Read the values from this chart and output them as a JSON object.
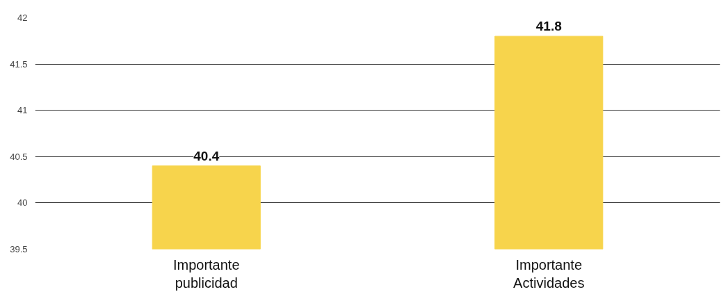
{
  "chart_data": {
    "type": "bar",
    "categories": [
      "Importante publicidad",
      "Importante Actividades"
    ],
    "values": [
      40.4,
      41.8
    ],
    "color": "#f7d44c",
    "ylim": [
      39.5,
      42
    ],
    "yticks": [
      39.5,
      40,
      40.5,
      41,
      41.5,
      42
    ],
    "grid": "y",
    "data_labels": true
  }
}
